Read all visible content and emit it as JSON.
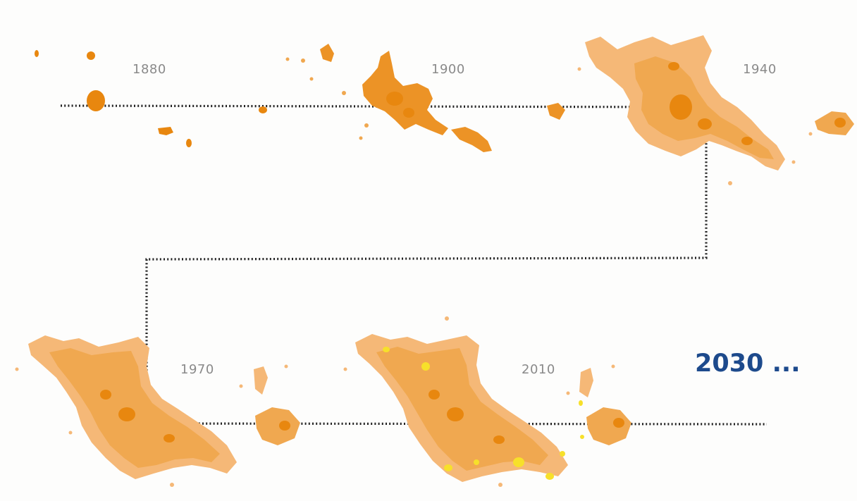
{
  "colors": {
    "urban_old": "#e8870f",
    "urban_mid": "#f0a850",
    "urban_new": "#f5b877",
    "urban_recent": "#f7e02a",
    "timeline": "#222222",
    "label": "#8a8a8a",
    "future_label": "#1d4a8c"
  },
  "timeline": {
    "snapshots": [
      {
        "year": "1880"
      },
      {
        "year": "1900"
      },
      {
        "year": "1940"
      },
      {
        "year": "1970"
      },
      {
        "year": "2010"
      }
    ],
    "future_label": "2030 ..."
  }
}
